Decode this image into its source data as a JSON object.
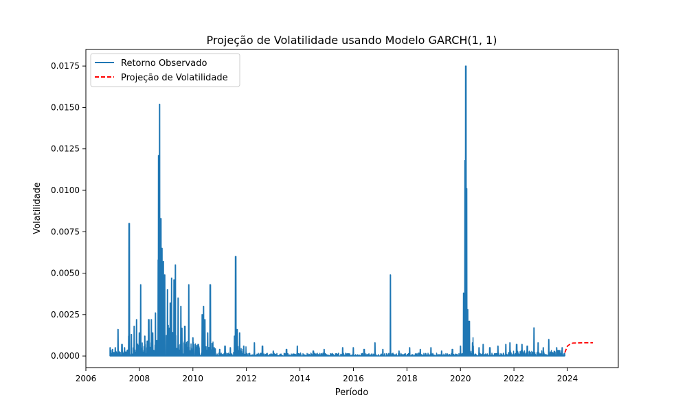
{
  "chart_data": {
    "type": "line",
    "title": "Projeção de Volatilidade usando Modelo GARCH(1, 1)",
    "xlabel": "Período",
    "ylabel": "Volatilidade",
    "xlim": [
      2006.0,
      2025.9
    ],
    "ylim": [
      -0.0007,
      0.0185
    ],
    "x_ticks": [
      2006,
      2008,
      2010,
      2012,
      2014,
      2016,
      2018,
      2020,
      2022,
      2024
    ],
    "x_tick_labels": [
      "2006",
      "2008",
      "2010",
      "2012",
      "2014",
      "2016",
      "2018",
      "2020",
      "2022",
      "2024"
    ],
    "y_ticks": [
      0.0,
      0.0025,
      0.005,
      0.0075,
      0.01,
      0.0125,
      0.015,
      0.0175
    ],
    "y_tick_labels": [
      "0.0000",
      "0.0025",
      "0.0050",
      "0.0075",
      "0.0100",
      "0.0125",
      "0.0150",
      "0.0175"
    ],
    "grid": false,
    "legend_position": "upper-left",
    "series": [
      {
        "name": "Retorno Observado",
        "color": "#1f77b4",
        "style": "solid",
        "spikes": [
          [
            2006.9,
            0.0005
          ],
          [
            2007.0,
            0.0004
          ],
          [
            2007.1,
            0.0005
          ],
          [
            2007.2,
            0.0016
          ],
          [
            2007.35,
            0.0007
          ],
          [
            2007.45,
            0.0005
          ],
          [
            2007.6,
            0.0012
          ],
          [
            2007.62,
            0.008
          ],
          [
            2007.7,
            0.0013
          ],
          [
            2007.8,
            0.0018
          ],
          [
            2007.9,
            0.0022
          ],
          [
            2008.0,
            0.0014
          ],
          [
            2008.05,
            0.0043
          ],
          [
            2008.2,
            0.0012
          ],
          [
            2008.3,
            0.0009
          ],
          [
            2008.35,
            0.0022
          ],
          [
            2008.45,
            0.0022
          ],
          [
            2008.5,
            0.0014
          ],
          [
            2008.6,
            0.0026
          ],
          [
            2008.7,
            0.0058
          ],
          [
            2008.72,
            0.0121
          ],
          [
            2008.76,
            0.0152
          ],
          [
            2008.8,
            0.0083
          ],
          [
            2008.85,
            0.0065
          ],
          [
            2008.9,
            0.0057
          ],
          [
            2008.95,
            0.0049
          ],
          [
            2009.05,
            0.004
          ],
          [
            2009.15,
            0.0032
          ],
          [
            2009.2,
            0.0047
          ],
          [
            2009.3,
            0.0046
          ],
          [
            2009.35,
            0.0055
          ],
          [
            2009.45,
            0.0035
          ],
          [
            2009.55,
            0.003
          ],
          [
            2009.7,
            0.0018
          ],
          [
            2009.85,
            0.0043
          ],
          [
            2010.0,
            0.0011
          ],
          [
            2010.2,
            0.0007
          ],
          [
            2010.35,
            0.0025
          ],
          [
            2010.4,
            0.003
          ],
          [
            2010.45,
            0.0022
          ],
          [
            2010.55,
            0.0014
          ],
          [
            2010.65,
            0.0043
          ],
          [
            2010.8,
            0.0005
          ],
          [
            2011.0,
            0.0004
          ],
          [
            2011.2,
            0.0006
          ],
          [
            2011.4,
            0.0005
          ],
          [
            2011.55,
            0.0012
          ],
          [
            2011.6,
            0.006
          ],
          [
            2011.65,
            0.0016
          ],
          [
            2011.75,
            0.0014
          ],
          [
            2011.9,
            0.0006
          ],
          [
            2012.3,
            0.0008
          ],
          [
            2012.6,
            0.0006
          ],
          [
            2013.0,
            0.0003
          ],
          [
            2013.5,
            0.0004
          ],
          [
            2013.9,
            0.0006
          ],
          [
            2014.5,
            0.0003
          ],
          [
            2014.9,
            0.0004
          ],
          [
            2015.6,
            0.0005
          ],
          [
            2016.0,
            0.0005
          ],
          [
            2016.4,
            0.0004
          ],
          [
            2016.8,
            0.0008
          ],
          [
            2017.1,
            0.0004
          ],
          [
            2017.38,
            0.0049
          ],
          [
            2017.7,
            0.0003
          ],
          [
            2018.1,
            0.0005
          ],
          [
            2018.5,
            0.0004
          ],
          [
            2018.9,
            0.0005
          ],
          [
            2019.3,
            0.0003
          ],
          [
            2019.7,
            0.0004
          ],
          [
            2020.0,
            0.0006
          ],
          [
            2020.12,
            0.0038
          ],
          [
            2020.17,
            0.0118
          ],
          [
            2020.2,
            0.0175
          ],
          [
            2020.23,
            0.0101
          ],
          [
            2020.27,
            0.0028
          ],
          [
            2020.33,
            0.0021
          ],
          [
            2020.45,
            0.0008
          ],
          [
            2020.7,
            0.0005
          ],
          [
            2020.85,
            0.0007
          ],
          [
            2021.1,
            0.0005
          ],
          [
            2021.4,
            0.0006
          ],
          [
            2021.7,
            0.0007
          ],
          [
            2021.85,
            0.0008
          ],
          [
            2022.1,
            0.0007
          ],
          [
            2022.3,
            0.0007
          ],
          [
            2022.5,
            0.0006
          ],
          [
            2022.75,
            0.0017
          ],
          [
            2022.9,
            0.0008
          ],
          [
            2023.1,
            0.0005
          ],
          [
            2023.3,
            0.001
          ],
          [
            2023.6,
            0.0005
          ],
          [
            2023.8,
            0.0005
          ]
        ],
        "x_start": 2006.9,
        "x_end": 2023.9
      },
      {
        "name": "Projeção de Volatilidade",
        "color": "#ff0000",
        "style": "dashed",
        "x": [
          2023.9,
          2023.95,
          2024.0,
          2024.1,
          2024.2,
          2024.4,
          2024.7,
          2024.95
        ],
        "y": [
          0.0002,
          0.0004,
          0.0006,
          0.00072,
          0.00078,
          0.00079,
          0.0008,
          0.0008
        ]
      }
    ]
  }
}
